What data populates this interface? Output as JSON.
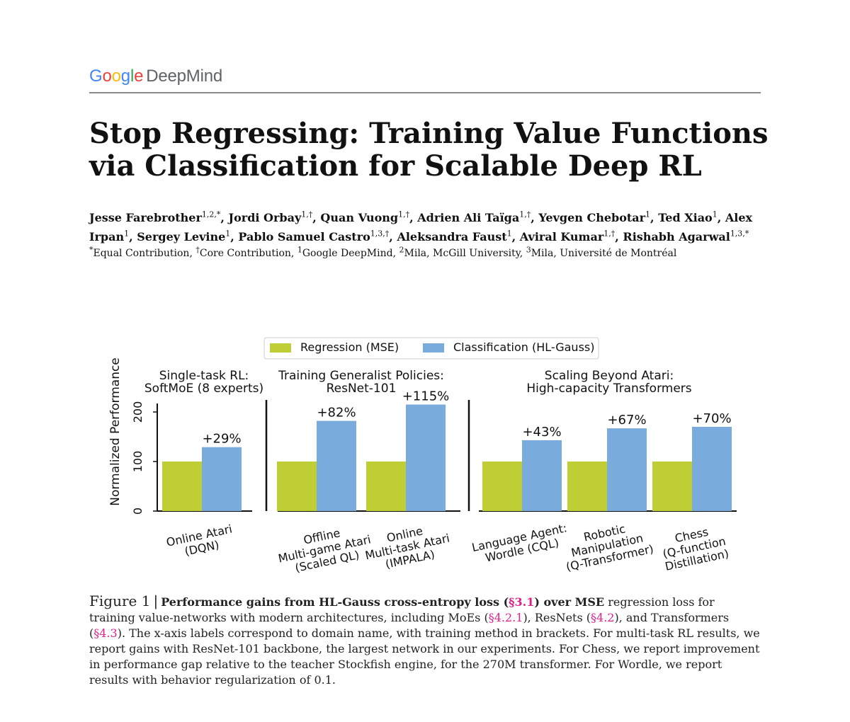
{
  "logo": {
    "google": "Google",
    "product": "DeepMind"
  },
  "title": "Stop Regressing: Training Value Functions via Classification for Scalable Deep RL",
  "authors": [
    {
      "name": "Jesse Farebrother",
      "sup": "1,2,*"
    },
    {
      "name": "Jordi Orbay",
      "sup": "1,†"
    },
    {
      "name": "Quan Vuong",
      "sup": "1,†"
    },
    {
      "name": "Adrien Ali Taïga",
      "sup": "1,†"
    },
    {
      "name": "Yevgen Chebotar",
      "sup": "1"
    },
    {
      "name": "Ted Xiao",
      "sup": "1"
    },
    {
      "name": "Alex Irpan",
      "sup": "1"
    },
    {
      "name": "Sergey Levine",
      "sup": "1"
    },
    {
      "name": "Pablo Samuel Castro",
      "sup": "1,3,†"
    },
    {
      "name": "Aleksandra Faust",
      "sup": "1"
    },
    {
      "name": "Aviral Kumar",
      "sup": "1,†"
    },
    {
      "name": "Rishabh Agarwal",
      "sup": "1,3,*"
    }
  ],
  "affiliations": [
    {
      "sup": "*",
      "text": "Equal Contribution"
    },
    {
      "sup": "†",
      "text": "Core Contribution"
    },
    {
      "sup": "1",
      "text": "Google DeepMind"
    },
    {
      "sup": "2",
      "text": "Mila, McGill University"
    },
    {
      "sup": "3",
      "text": "Mila, Université de Montréal"
    }
  ],
  "chart_data": {
    "type": "bar",
    "legend": {
      "placement": "top-center",
      "entries": [
        "Regression (MSE)",
        "Classification (HL-Gauss)"
      ]
    },
    "colors": {
      "regression": "#bfce34",
      "classification": "#79abdd"
    },
    "ylabel": "Normalized Performance",
    "yticks": [
      0,
      100,
      200
    ],
    "ylim": [
      0,
      230
    ],
    "groups": [
      {
        "title": [
          "Single-task RL:",
          "SoftMoE (8 experts)"
        ],
        "categories": [
          {
            "label": [
              "Online Atari",
              "(DQN)"
            ],
            "regression": 100,
            "classification": 129,
            "gain": "+29%"
          }
        ]
      },
      {
        "title": [
          "Training Generalist Policies:",
          "ResNet-101"
        ],
        "categories": [
          {
            "label": [
              "Offline",
              "Multi-game Atari",
              "(Scaled QL)"
            ],
            "regression": 100,
            "classification": 182,
            "gain": "+82%"
          },
          {
            "label": [
              "Online",
              "Multi-task Atari",
              "(IMPALA)"
            ],
            "regression": 100,
            "classification": 215,
            "gain": "+115%"
          }
        ]
      },
      {
        "title": [
          "Scaling Beyond Atari:",
          "High-capacity Transformers"
        ],
        "categories": [
          {
            "label": [
              "Language Agent:",
              "Wordle (CQL)"
            ],
            "regression": 100,
            "classification": 143,
            "gain": "+43%"
          },
          {
            "label": [
              "Robotic",
              "Manipulation",
              "(Q-Transformer)"
            ],
            "regression": 100,
            "classification": 167,
            "gain": "+67%"
          },
          {
            "label": [
              "Chess",
              "(Q-function",
              "Distillation)"
            ],
            "regression": 100,
            "classification": 170,
            "gain": "+70%"
          }
        ]
      }
    ]
  },
  "caption": {
    "label": "Figure 1",
    "bold_a": "Performance gains from HL-Gauss cross-entropy loss (",
    "ref_main": "§3.1",
    "bold_b": ") over MSE",
    "t1": " regression loss for training value-networks with modern architectures, including MoEs (",
    "ref_moe": "§4.2.1",
    "t2": "), ResNets (",
    "ref_resnet": "§4.2",
    "t3": "), and Transformers (",
    "ref_transformer": "§4.3",
    "t4": "). The x-axis labels correspond to domain name, with training method in brackets. For multi-task RL results, we report gains with ResNet-101 backbone, the largest network in our experiments. For Chess, we report improvement in performance gap relative to the teacher Stockfish engine, for the 270M transformer. For Wordle, we report results with behavior regularization of 0.1."
  }
}
